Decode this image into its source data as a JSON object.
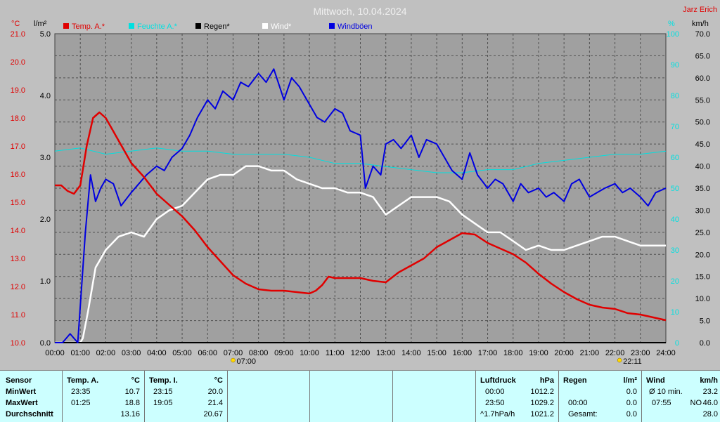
{
  "header": {
    "title": "Mittwoch, 10.04.2024",
    "station": "Jarz Erich"
  },
  "axis_units": {
    "temp": "°C",
    "rain": "l/m²",
    "humidity": "%",
    "wind": "km/h"
  },
  "colors": {
    "background": "#c0c0c0",
    "plot_bg": "#a0a0a0",
    "temp": "#e00000",
    "humidity": "#00e0e0",
    "rain": "#000000",
    "wind": "#ffffff",
    "gust": "#0000e0",
    "panel_bg": "#ccffff"
  },
  "chart_data": {
    "type": "line",
    "title": "Mittwoch, 10.04.2024",
    "x_ticks": [
      "00:00",
      "01:00",
      "02:00",
      "03:00",
      "04:00",
      "05:00",
      "06:00",
      "07:00",
      "08:00",
      "09:00",
      "10:00",
      "11:00",
      "12:00",
      "13:00",
      "14:00",
      "15:00",
      "16:00",
      "17:00",
      "18:00",
      "19:00",
      "20:00",
      "21:00",
      "22:00",
      "23:00",
      "24:00"
    ],
    "xlim": [
      0,
      24
    ],
    "temp_axis": {
      "ylim": [
        10.0,
        21.0
      ],
      "ticks": [
        "10.0",
        "11.0",
        "12.0",
        "13.0",
        "14.0",
        "15.0",
        "16.0",
        "17.0",
        "18.0",
        "19.0",
        "20.0",
        "21.0"
      ]
    },
    "rain_axis": {
      "ylim": [
        0.0,
        5.0
      ],
      "ticks": [
        "0.0",
        "1.0",
        "2.0",
        "3.0",
        "4.0",
        "5.0"
      ]
    },
    "humidity_axis": {
      "ylim": [
        0,
        100
      ],
      "ticks": [
        "0",
        "10",
        "20",
        "30",
        "40",
        "50",
        "60",
        "70",
        "80",
        "90",
        "100"
      ]
    },
    "wind_axis": {
      "ylim": [
        0.0,
        70.0
      ],
      "ticks": [
        "0.0",
        "5.0",
        "10.0",
        "15.0",
        "20.0",
        "25.0",
        "30.0",
        "35.0",
        "40.0",
        "45.0",
        "50.0",
        "55.0",
        "60.0",
        "65.0",
        "70.0"
      ]
    },
    "sun_markers": [
      {
        "time": 7.0,
        "label": "07:00"
      },
      {
        "time": 22.18,
        "label": "22:11"
      }
    ],
    "series": [
      {
        "name": "Temp. A.*",
        "axis": "temp",
        "color": "#e00000",
        "x": [
          0,
          0.25,
          0.5,
          0.75,
          1.0,
          1.25,
          1.5,
          1.75,
          2.0,
          2.25,
          2.5,
          2.75,
          3.0,
          3.5,
          4.0,
          4.5,
          5.0,
          5.5,
          6.0,
          6.5,
          7.0,
          7.5,
          8.0,
          8.5,
          9.0,
          9.5,
          10.0,
          10.25,
          10.5,
          10.75,
          11.0,
          11.5,
          12.0,
          12.5,
          13.0,
          13.5,
          14.0,
          14.5,
          15.0,
          15.5,
          16.0,
          16.5,
          17.0,
          17.5,
          18.0,
          18.5,
          19.0,
          19.5,
          20.0,
          20.5,
          21.0,
          21.5,
          22.0,
          22.5,
          23.0,
          23.5,
          23.75,
          24.0
        ],
        "y": [
          15.6,
          15.6,
          15.4,
          15.3,
          15.6,
          17.0,
          18.0,
          18.2,
          18.0,
          17.6,
          17.2,
          16.8,
          16.4,
          15.9,
          15.3,
          14.9,
          14.5,
          14.0,
          13.4,
          12.9,
          12.4,
          12.1,
          11.9,
          11.85,
          11.85,
          11.8,
          11.75,
          11.85,
          12.05,
          12.35,
          12.3,
          12.3,
          12.3,
          12.2,
          12.15,
          12.5,
          12.75,
          13.0,
          13.4,
          13.65,
          13.9,
          13.85,
          13.55,
          13.35,
          13.15,
          12.85,
          12.45,
          12.1,
          11.8,
          11.55,
          11.35,
          11.25,
          11.2,
          11.05,
          11.0,
          10.9,
          10.85,
          10.8
        ]
      },
      {
        "name": "Feuchte A.*",
        "axis": "humidity",
        "color": "#00e0e0",
        "x": [
          0,
          1,
          2,
          3,
          4,
          5,
          6,
          7,
          8,
          9,
          10,
          11,
          12,
          13,
          14,
          15,
          16,
          17,
          18,
          19,
          20,
          21,
          22,
          23,
          24
        ],
        "y": [
          62,
          63,
          61,
          62,
          63,
          62,
          62,
          61,
          61,
          61,
          60,
          58,
          58,
          57,
          56,
          55,
          55,
          56,
          56,
          58,
          59,
          60,
          61,
          61,
          62
        ]
      },
      {
        "name": "Regen*",
        "axis": "rain",
        "color": "#000000",
        "x": [
          0,
          24
        ],
        "y": [
          0.0,
          0.0
        ]
      },
      {
        "name": "Wind*",
        "axis": "wind",
        "color": "#ffffff",
        "x": [
          0,
          1.0,
          1.1,
          1.3,
          1.6,
          2.0,
          2.5,
          3.0,
          3.5,
          4.0,
          4.5,
          5.0,
          5.5,
          6.0,
          6.5,
          7.0,
          7.5,
          8.0,
          8.5,
          9.0,
          9.5,
          10.0,
          10.5,
          11.0,
          11.5,
          12.0,
          12.5,
          13.0,
          13.5,
          14.0,
          14.5,
          15.0,
          15.5,
          16.0,
          16.5,
          17.0,
          17.5,
          18.0,
          18.5,
          19.0,
          19.5,
          20.0,
          20.5,
          21.0,
          21.5,
          22.0,
          22.5,
          23.0,
          23.5,
          24.0
        ],
        "y": [
          0,
          0,
          1,
          7,
          17,
          21,
          24,
          25,
          24,
          28,
          30,
          31,
          34,
          37,
          38,
          38,
          40,
          40,
          39,
          39,
          37,
          36,
          35,
          35,
          34,
          34,
          33,
          29,
          31,
          33,
          33,
          33,
          32,
          29,
          27,
          25,
          25,
          23,
          21,
          22,
          21,
          21,
          22,
          23,
          24,
          24,
          23,
          22,
          22,
          22
        ]
      },
      {
        "name": "Windböen",
        "axis": "wind",
        "color": "#0000e0",
        "x": [
          0,
          0.3,
          0.6,
          0.9,
          1.2,
          1.4,
          1.6,
          1.8,
          2.0,
          2.3,
          2.6,
          3.0,
          3.3,
          3.6,
          4.0,
          4.3,
          4.6,
          5.0,
          5.3,
          5.6,
          6.0,
          6.3,
          6.6,
          7.0,
          7.3,
          7.6,
          8.0,
          8.3,
          8.6,
          9.0,
          9.3,
          9.6,
          10.0,
          10.3,
          10.6,
          11.0,
          11.3,
          11.6,
          12.0,
          12.2,
          12.5,
          12.8,
          13.0,
          13.3,
          13.6,
          14.0,
          14.3,
          14.6,
          15.0,
          15.3,
          15.6,
          16.0,
          16.3,
          16.6,
          17.0,
          17.3,
          17.6,
          18.0,
          18.3,
          18.6,
          19.0,
          19.3,
          19.6,
          20.0,
          20.3,
          20.6,
          21.0,
          21.3,
          21.6,
          22.0,
          22.3,
          22.6,
          23.0,
          23.3,
          23.6,
          24.0
        ],
        "y": [
          0,
          0,
          2,
          0,
          25,
          38,
          32,
          35,
          37,
          36,
          31,
          34,
          36,
          38,
          40,
          39,
          42,
          44,
          47,
          51,
          55,
          53,
          57,
          55,
          59,
          58,
          61,
          59,
          62,
          55,
          60,
          58,
          54,
          51,
          50,
          53,
          52,
          48,
          47,
          35,
          40,
          38,
          45,
          46,
          44,
          47,
          42,
          46,
          45,
          42,
          39,
          37,
          43,
          38,
          35,
          37,
          36,
          32,
          36,
          34,
          35,
          33,
          34,
          32,
          36,
          37,
          33,
          34,
          35,
          36,
          34,
          35,
          33,
          31,
          34,
          35
        ]
      }
    ]
  },
  "panel": {
    "sensor": {
      "header": "Sensor",
      "rows": [
        "MinWert",
        "MaxWert",
        "Durchschnitt"
      ]
    },
    "temp_a": {
      "header": "Temp. A.",
      "unit": "°C",
      "min_time": "23:35",
      "min_val": "10.7",
      "max_time": "01:25",
      "max_val": "18.8",
      "avg": "13.16"
    },
    "temp_i": {
      "header": "Temp. I.",
      "unit": "°C",
      "min_time": "23:15",
      "min_val": "20.0",
      "max_time": "19:05",
      "max_val": "21.4",
      "avg": "20.67"
    },
    "pressure": {
      "header": "Luftdruck",
      "unit": "hPa",
      "r1_time": "00:00",
      "r1_val": "1012.2",
      "r2_time": "23:50",
      "r2_val": "1029.2",
      "r3_label": "^1.7hPa/h",
      "r3_val": "1021.2"
    },
    "rain": {
      "header": "Regen",
      "unit": "l/m²",
      "r2_time": "00:00",
      "r2_val": "0.0",
      "r1_val": "0.0",
      "r3_label": "Gesamt:",
      "r3_val": "0.0"
    },
    "wind": {
      "header": "Wind",
      "unit": "km/h",
      "r1_label": "Ø 10 min.",
      "r1_val": "23.2",
      "r2_time": "07:55",
      "r2_label": "NO",
      "r2_val": "46.0",
      "r3_val": "28.0"
    }
  }
}
